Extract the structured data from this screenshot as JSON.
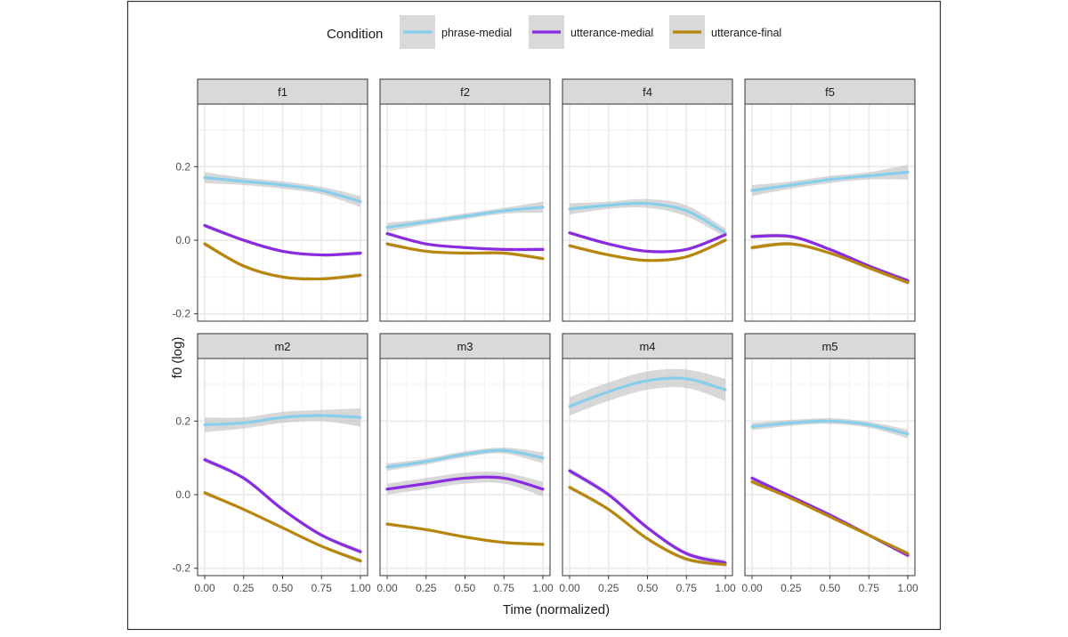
{
  "chart_data": {
    "type": "line",
    "xlabel": "Time (normalized)",
    "ylabel": "f0 (log)",
    "xlim": [
      0,
      1
    ],
    "ylim": [
      -0.22,
      0.37
    ],
    "x_ticks": [
      0.0,
      0.25,
      0.5,
      0.75,
      1.0
    ],
    "x_tick_labels": [
      "0.00",
      "0.25",
      "0.50",
      "0.75",
      "1.00"
    ],
    "y_ticks": [
      -0.2,
      0.0,
      0.2
    ],
    "y_tick_labels": [
      "-0.2",
      "0.0",
      "0.2"
    ],
    "grid": true,
    "legend": {
      "title": "Condition",
      "position": "top",
      "entries": [
        "phrase-medial",
        "utterance-medial",
        "utterance-final"
      ]
    },
    "series_colors": {
      "phrase-medial": "#87ceeb",
      "utterance-medial": "#8a2be2",
      "utterance-final": "#b8860b"
    },
    "band_color": "#bebebe",
    "x": [
      0.0,
      0.25,
      0.5,
      0.75,
      1.0
    ],
    "panels": [
      {
        "label": "f1",
        "series": [
          {
            "name": "phrase-medial",
            "values": [
              0.17,
              0.16,
              0.15,
              0.135,
              0.105
            ],
            "se": [
              0.015,
              0.01,
              0.01,
              0.01,
              0.015
            ]
          },
          {
            "name": "utterance-medial",
            "values": [
              0.04,
              0.0,
              -0.03,
              -0.04,
              -0.035
            ],
            "se": [
              0.006,
              0.004,
              0.004,
              0.004,
              0.006
            ]
          },
          {
            "name": "utterance-final",
            "values": [
              -0.01,
              -0.07,
              -0.1,
              -0.105,
              -0.095
            ],
            "se": [
              0.006,
              0.004,
              0.004,
              0.004,
              0.006
            ]
          }
        ]
      },
      {
        "label": "f2",
        "series": [
          {
            "name": "phrase-medial",
            "values": [
              0.035,
              0.05,
              0.065,
              0.08,
              0.09
            ],
            "se": [
              0.012,
              0.008,
              0.008,
              0.008,
              0.015
            ]
          },
          {
            "name": "utterance-medial",
            "values": [
              0.018,
              -0.01,
              -0.02,
              -0.025,
              -0.025
            ],
            "se": [
              0.005,
              0.004,
              0.004,
              0.004,
              0.005
            ]
          },
          {
            "name": "utterance-final",
            "values": [
              -0.01,
              -0.03,
              -0.035,
              -0.035,
              -0.05
            ],
            "se": [
              0.005,
              0.004,
              0.004,
              0.004,
              0.005
            ]
          }
        ]
      },
      {
        "label": "f4",
        "series": [
          {
            "name": "phrase-medial",
            "values": [
              0.085,
              0.095,
              0.1,
              0.08,
              0.02
            ],
            "se": [
              0.015,
              0.01,
              0.012,
              0.015,
              0.012
            ]
          },
          {
            "name": "utterance-medial",
            "values": [
              0.02,
              -0.01,
              -0.03,
              -0.025,
              0.015
            ],
            "se": [
              0.005,
              0.004,
              0.004,
              0.004,
              0.005
            ]
          },
          {
            "name": "utterance-final",
            "values": [
              -0.015,
              -0.04,
              -0.055,
              -0.045,
              0.0
            ],
            "se": [
              0.005,
              0.004,
              0.004,
              0.004,
              0.005
            ]
          }
        ]
      },
      {
        "label": "f5",
        "series": [
          {
            "name": "phrase-medial",
            "values": [
              0.135,
              0.15,
              0.165,
              0.175,
              0.185
            ],
            "se": [
              0.015,
              0.01,
              0.01,
              0.01,
              0.02
            ]
          },
          {
            "name": "utterance-medial",
            "values": [
              0.01,
              0.01,
              -0.025,
              -0.07,
              -0.11
            ],
            "se": [
              0.006,
              0.005,
              0.004,
              0.005,
              0.006
            ]
          },
          {
            "name": "utterance-final",
            "values": [
              -0.02,
              -0.01,
              -0.035,
              -0.075,
              -0.115
            ],
            "se": [
              0.006,
              0.005,
              0.004,
              0.005,
              0.006
            ]
          }
        ]
      },
      {
        "label": "m2",
        "series": [
          {
            "name": "phrase-medial",
            "values": [
              0.19,
              0.195,
              0.21,
              0.215,
              0.21
            ],
            "se": [
              0.02,
              0.015,
              0.015,
              0.015,
              0.025
            ]
          },
          {
            "name": "utterance-medial",
            "values": [
              0.095,
              0.045,
              -0.04,
              -0.11,
              -0.155
            ],
            "se": [
              0.007,
              0.005,
              0.005,
              0.005,
              0.007
            ]
          },
          {
            "name": "utterance-final",
            "values": [
              0.005,
              -0.04,
              -0.09,
              -0.14,
              -0.18
            ],
            "se": [
              0.006,
              0.004,
              0.004,
              0.004,
              0.006
            ]
          }
        ]
      },
      {
        "label": "m3",
        "series": [
          {
            "name": "phrase-medial",
            "values": [
              0.075,
              0.09,
              0.11,
              0.12,
              0.1
            ],
            "se": [
              0.01,
              0.008,
              0.008,
              0.008,
              0.015
            ]
          },
          {
            "name": "utterance-medial",
            "values": [
              0.015,
              0.03,
              0.045,
              0.045,
              0.015
            ],
            "se": [
              0.015,
              0.015,
              0.015,
              0.015,
              0.02
            ]
          },
          {
            "name": "utterance-final",
            "values": [
              -0.08,
              -0.095,
              -0.115,
              -0.13,
              -0.135
            ],
            "se": [
              0.005,
              0.004,
              0.004,
              0.004,
              0.005
            ]
          }
        ]
      },
      {
        "label": "m4",
        "series": [
          {
            "name": "phrase-medial",
            "values": [
              0.24,
              0.28,
              0.31,
              0.315,
              0.285
            ],
            "se": [
              0.025,
              0.025,
              0.025,
              0.025,
              0.03
            ]
          },
          {
            "name": "utterance-medial",
            "values": [
              0.065,
              0.0,
              -0.09,
              -0.16,
              -0.185
            ],
            "se": [
              0.008,
              0.006,
              0.006,
              0.006,
              0.008
            ]
          },
          {
            "name": "utterance-final",
            "values": [
              0.02,
              -0.04,
              -0.12,
              -0.175,
              -0.19
            ],
            "se": [
              0.006,
              0.005,
              0.005,
              0.005,
              0.006
            ]
          }
        ]
      },
      {
        "label": "m5",
        "series": [
          {
            "name": "phrase-medial",
            "values": [
              0.185,
              0.195,
              0.2,
              0.19,
              0.165
            ],
            "se": [
              0.01,
              0.008,
              0.008,
              0.008,
              0.012
            ]
          },
          {
            "name": "utterance-medial",
            "values": [
              0.045,
              -0.005,
              -0.055,
              -0.11,
              -0.165
            ],
            "se": [
              0.006,
              0.004,
              0.004,
              0.004,
              0.006
            ]
          },
          {
            "name": "utterance-final",
            "values": [
              0.035,
              -0.01,
              -0.06,
              -0.11,
              -0.16
            ],
            "se": [
              0.006,
              0.004,
              0.004,
              0.004,
              0.006
            ]
          }
        ]
      }
    ]
  }
}
